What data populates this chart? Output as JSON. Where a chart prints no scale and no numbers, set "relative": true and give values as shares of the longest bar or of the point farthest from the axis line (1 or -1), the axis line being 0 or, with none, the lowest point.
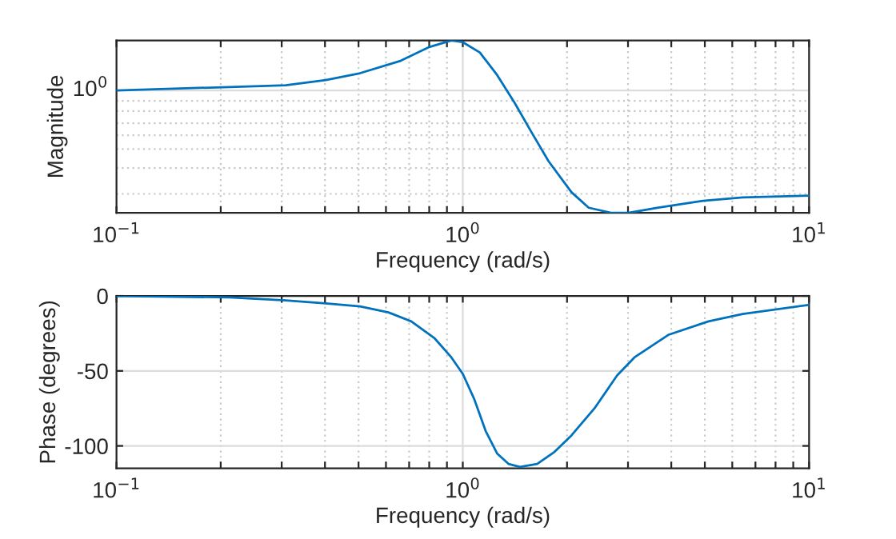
{
  "chart_data": [
    {
      "type": "line",
      "xlabel": "Frequency (rad/s)",
      "ylabel": "Magnitude",
      "log": "x",
      "relative": true,
      "grid": "x",
      "marker": "none",
      "line_style": "solid",
      "x": [
        0.1,
        0.212,
        0.308,
        0.402,
        0.505,
        0.658,
        0.796,
        0.927,
        1.0,
        1.12,
        1.256,
        1.41,
        1.577,
        1.768,
        2.06,
        2.31,
        2.69,
        3.01,
        3.64,
        4.94,
        6.43,
        10
      ],
      "series": [
        {
          "color": "#0072bd",
          "values": [
            0.71,
            0.73,
            0.74,
            0.77,
            0.81,
            0.88,
            0.96,
            1.0,
            0.99,
            0.93,
            0.8,
            0.64,
            0.47,
            0.3,
            0.12,
            0.03,
            0,
            0.0,
            0.03,
            0.07,
            0.09,
            0.1
          ]
        }
      ],
      "xlim": [
        0.1,
        10
      ],
      "xticks": [
        {
          "value": 0.1,
          "label": "10$^{−1}$"
        },
        {
          "value": 0.2,
          "label": null
        },
        {
          "value": 0.3,
          "label": null
        },
        {
          "value": 0.4,
          "label": null
        },
        {
          "value": 0.5,
          "label": null
        },
        {
          "value": 0.6,
          "label": null
        },
        {
          "value": 0.7,
          "label": null
        },
        {
          "value": 0.8,
          "label": null
        },
        {
          "value": 0.9,
          "label": null
        },
        {
          "value": 1,
          "label": "10$^{0}$"
        },
        {
          "value": 2,
          "label": null
        },
        {
          "value": 3,
          "label": null
        },
        {
          "value": 4,
          "label": null
        },
        {
          "value": 5,
          "label": null
        },
        {
          "value": 6,
          "label": null
        },
        {
          "value": 7,
          "label": null
        },
        {
          "value": 8,
          "label": null
        },
        {
          "value": 9,
          "label": null
        },
        {
          "value": 10,
          "label": "10$^{1}$"
        }
      ],
      "ref_lines": [
        {
          "axis": "y",
          "value": 0.71,
          "line_style": "solid",
          "color": "#dcdcdc"
        },
        {
          "axis": "x",
          "value": 1,
          "line_style": "solid",
          "color": "#dcdcdc"
        },
        {
          "axis": "y",
          "value": 0.65,
          "line_style": "dotted",
          "color": "#c8c8c8"
        },
        {
          "axis": "y",
          "value": 0.59,
          "line_style": "dotted",
          "color": "#c8c8c8"
        },
        {
          "axis": "y",
          "value": 0.52,
          "line_style": "dotted",
          "color": "#c8c8c8"
        },
        {
          "axis": "y",
          "value": 0.45,
          "line_style": "dotted",
          "color": "#c8c8c8"
        },
        {
          "axis": "y",
          "value": 0.37,
          "line_style": "dotted",
          "color": "#c8c8c8"
        },
        {
          "axis": "y",
          "value": 0.26,
          "line_style": "dotted",
          "color": "#c8c8c8"
        },
        {
          "axis": "y",
          "value": 0.11,
          "line_style": "dotted",
          "color": "#c8c8c8"
        }
      ],
      "annotations": [
        "10$^{0}$"
      ]
    },
    {
      "type": "line",
      "xlabel": "Frequency (rad/s)",
      "ylabel": "Phase (degrees)",
      "log": "x",
      "grid": true,
      "marker": "none",
      "line_style": "solid",
      "x": [
        0.1,
        0.212,
        0.308,
        0.402,
        0.505,
        0.61,
        0.71,
        0.827,
        0.927,
        1.0,
        1.08,
        1.164,
        1.256,
        1.355,
        1.462,
        1.64,
        1.84,
        2.06,
        2.4,
        2.79,
        3.13,
        3.92,
        5.12,
        6.43,
        10
      ],
      "series": [
        {
          "color": "#0072bd",
          "values": [
            0,
            -1,
            -3,
            -5,
            -7,
            -11,
            -17,
            -28,
            -41,
            -52,
            -69,
            -90,
            -105,
            -112,
            -114,
            -112,
            -104,
            -93,
            -75,
            -53,
            -41,
            -26,
            -17,
            -12,
            -6
          ]
        }
      ],
      "xlim": [
        0.1,
        10
      ],
      "ylim": [
        -115,
        0
      ],
      "xticks": [
        {
          "value": 0.1,
          "label": "10$^{−1}$"
        },
        {
          "value": 0.2,
          "label": null
        },
        {
          "value": 0.3,
          "label": null
        },
        {
          "value": 0.4,
          "label": null
        },
        {
          "value": 0.5,
          "label": null
        },
        {
          "value": 0.6,
          "label": null
        },
        {
          "value": 0.7,
          "label": null
        },
        {
          "value": 0.8,
          "label": null
        },
        {
          "value": 0.9,
          "label": null
        },
        {
          "value": 1,
          "label": "10$^{0}$"
        },
        {
          "value": 2,
          "label": null
        },
        {
          "value": 3,
          "label": null
        },
        {
          "value": 4,
          "label": null
        },
        {
          "value": 5,
          "label": null
        },
        {
          "value": 6,
          "label": null
        },
        {
          "value": 7,
          "label": null
        },
        {
          "value": 8,
          "label": null
        },
        {
          "value": 9,
          "label": null
        },
        {
          "value": 10,
          "label": "10$^{1}$"
        }
      ],
      "yticks": [
        -100,
        -50,
        0
      ]
    }
  ]
}
